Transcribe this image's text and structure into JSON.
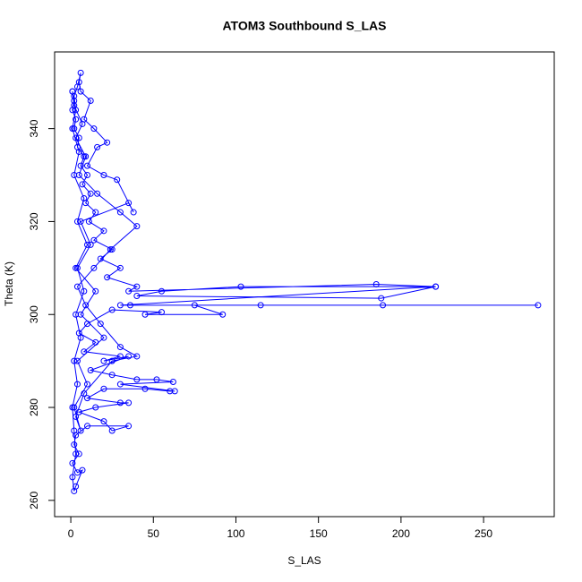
{
  "chart_data": {
    "type": "line",
    "markers": true,
    "title": "ATOM3 Southbound S_LAS",
    "xlabel": "S_LAS",
    "ylabel": "Theta (K)",
    "xlim": [
      -9.8,
      292.8
    ],
    "ylim": [
      256.5,
      356.5
    ],
    "xticks": [
      0,
      50,
      100,
      150,
      200,
      250
    ],
    "yticks": [
      260,
      280,
      300,
      320,
      340
    ],
    "grid": false,
    "series": [
      {
        "color": "#0000ff",
        "x": [
          1,
          2,
          1,
          3,
          2,
          5,
          4,
          8,
          6,
          10,
          7,
          12,
          9,
          15,
          11,
          20,
          14,
          25,
          18,
          30,
          22,
          40,
          35,
          185,
          221,
          103,
          55,
          40,
          188,
          221,
          30,
          115,
          189,
          283,
          36,
          75,
          92,
          45,
          55,
          25,
          10,
          5,
          15,
          8,
          30,
          20,
          35,
          12,
          25,
          40,
          52,
          62,
          30,
          63,
          60,
          45,
          20,
          10,
          30,
          35,
          15,
          5,
          20,
          25,
          35,
          10,
          3,
          2,
          5,
          1,
          4,
          7,
          3,
          2,
          1,
          3,
          2,
          1,
          4,
          2,
          6,
          3,
          8,
          4,
          12,
          6,
          35,
          38,
          28,
          20,
          10,
          16,
          22,
          14,
          8,
          12,
          6,
          5,
          6,
          4,
          2,
          3,
          1,
          5,
          2,
          8,
          4,
          10,
          3,
          15,
          6,
          20,
          4,
          10,
          2,
          6,
          3,
          8,
          25,
          40,
          30,
          18,
          9,
          4,
          14,
          24,
          40,
          30,
          16,
          5,
          9,
          3,
          7,
          2,
          1
        ],
        "values": [
          348,
          346,
          344,
          342,
          340,
          338,
          336,
          334,
          332,
          330,
          328,
          326,
          324,
          322,
          320,
          318,
          316,
          314,
          312,
          310,
          308,
          306,
          305,
          306.5,
          306,
          306,
          305,
          304,
          303.5,
          306,
          302,
          302,
          302,
          302,
          302,
          302,
          300,
          300,
          300.5,
          301,
          298,
          296,
          294,
          292,
          291,
          290,
          291,
          288,
          287,
          286,
          286,
          285.5,
          285,
          283.5,
          283.5,
          284,
          284,
          282,
          281,
          281,
          280,
          279,
          277,
          275,
          276,
          276,
          274,
          272,
          270,
          268,
          266,
          266.5,
          263,
          262,
          265,
          270,
          275,
          280,
          285,
          290,
          295,
          300,
          305,
          310,
          315,
          320,
          324,
          322,
          329,
          330,
          332,
          336,
          337,
          340,
          342,
          346,
          348,
          350,
          352,
          349,
          347,
          344,
          340,
          335,
          330,
          325,
          320,
          315,
          310,
          305,
          300,
          295,
          290,
          285,
          280,
          275,
          278,
          283,
          290,
          291,
          293,
          298,
          302,
          306,
          310,
          314,
          319,
          322,
          326,
          330,
          334,
          338,
          341,
          345,
          348
        ]
      }
    ]
  }
}
